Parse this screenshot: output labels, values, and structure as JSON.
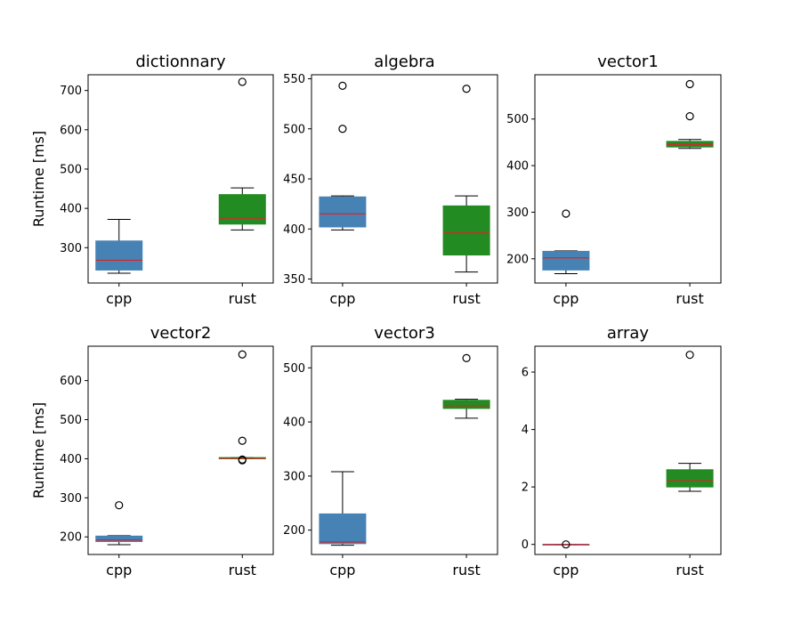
{
  "chart_data": [
    {
      "type": "box",
      "title": "dictionnary",
      "ylabel": "Runtime [ms]",
      "categories": [
        "cpp",
        "rust"
      ],
      "ylim": [
        210,
        740
      ],
      "yticks": [
        300,
        400,
        500,
        600,
        700
      ],
      "colors": [
        "#4682B4",
        "#228B22"
      ],
      "boxes": [
        {
          "name": "cpp",
          "whisker_low": 235,
          "q1": 243,
          "median": 268,
          "q3": 317,
          "whisker_high": 372,
          "outliers": []
        },
        {
          "name": "rust",
          "whisker_low": 345,
          "q1": 360,
          "median": 375,
          "q3": 435,
          "whisker_high": 452,
          "outliers": [
            722
          ]
        }
      ]
    },
    {
      "type": "box",
      "title": "algebra",
      "ylabel": "",
      "categories": [
        "cpp",
        "rust"
      ],
      "ylim": [
        346,
        554
      ],
      "yticks": [
        350,
        400,
        450,
        500,
        550
      ],
      "colors": [
        "#4682B4",
        "#228B22"
      ],
      "boxes": [
        {
          "name": "cpp",
          "whisker_low": 399,
          "q1": 402,
          "median": 415,
          "q3": 432,
          "whisker_high": 433,
          "outliers": [
            500,
            543
          ]
        },
        {
          "name": "rust",
          "whisker_low": 357,
          "q1": 374,
          "median": 396,
          "q3": 423,
          "whisker_high": 433,
          "outliers": [
            540
          ]
        }
      ]
    },
    {
      "type": "box",
      "title": "vector1",
      "ylabel": "",
      "categories": [
        "cpp",
        "rust"
      ],
      "ylim": [
        148,
        595
      ],
      "yticks": [
        200,
        300,
        400,
        500
      ],
      "colors": [
        "#4682B4",
        "#228B22"
      ],
      "boxes": [
        {
          "name": "cpp",
          "whisker_low": 168,
          "q1": 176,
          "median": 202,
          "q3": 216,
          "whisker_high": 217,
          "outliers": [
            297
          ]
        },
        {
          "name": "rust",
          "whisker_low": 437,
          "q1": 440,
          "median": 445,
          "q3": 452,
          "whisker_high": 456,
          "outliers": [
            506,
            575
          ]
        }
      ]
    },
    {
      "type": "box",
      "title": "vector2",
      "ylabel": "Runtime [ms]",
      "categories": [
        "cpp",
        "rust"
      ],
      "ylim": [
        155,
        688
      ],
      "yticks": [
        200,
        300,
        400,
        500,
        600
      ],
      "colors": [
        "#4682B4",
        "#228B22"
      ],
      "boxes": [
        {
          "name": "cpp",
          "whisker_low": 180,
          "q1": 188,
          "median": 192,
          "q3": 202,
          "whisker_high": 203,
          "outliers": [
            281
          ]
        },
        {
          "name": "rust",
          "whisker_low": 400,
          "q1": 400,
          "median": 401,
          "q3": 403,
          "whisker_high": 403,
          "outliers": [
            396,
            398,
            446,
            667
          ]
        }
      ]
    },
    {
      "type": "box",
      "title": "vector3",
      "ylabel": "",
      "categories": [
        "cpp",
        "rust"
      ],
      "ylim": [
        155,
        540
      ],
      "yticks": [
        200,
        300,
        400,
        500
      ],
      "colors": [
        "#4682B4",
        "#228B22"
      ],
      "boxes": [
        {
          "name": "cpp",
          "whisker_low": 172,
          "q1": 175,
          "median": 178,
          "q3": 230,
          "whisker_high": 308,
          "outliers": []
        },
        {
          "name": "rust",
          "whisker_low": 407,
          "q1": 425,
          "median": 430,
          "q3": 440,
          "whisker_high": 442,
          "outliers": [
            518
          ]
        }
      ]
    },
    {
      "type": "box",
      "title": "array",
      "ylabel": "",
      "categories": [
        "cpp",
        "rust"
      ],
      "ylim": [
        -0.35,
        6.9
      ],
      "yticks": [
        0,
        2,
        4,
        6
      ],
      "colors": [
        "#4682B4",
        "#228B22"
      ],
      "boxes": [
        {
          "name": "cpp",
          "whisker_low": 0,
          "q1": 0,
          "median": 0,
          "q3": 0,
          "whisker_high": 0,
          "outliers": [
            0
          ]
        },
        {
          "name": "rust",
          "whisker_low": 1.85,
          "q1": 2.0,
          "median": 2.22,
          "q3": 2.6,
          "whisker_high": 2.82,
          "outliers": [
            6.6
          ]
        }
      ]
    }
  ]
}
